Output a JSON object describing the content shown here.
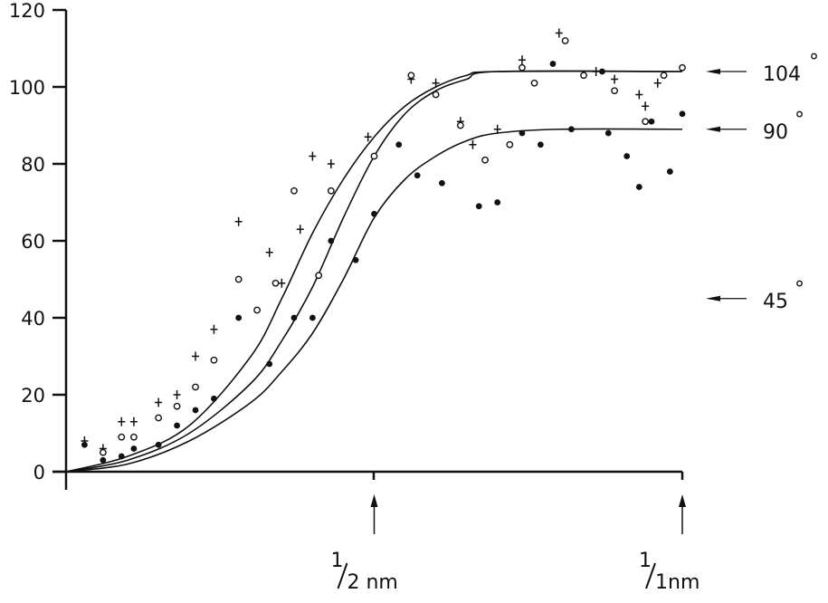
{
  "chart_data": {
    "type": "scatter",
    "title": "",
    "xlabel": "",
    "ylabel": "",
    "ylim": [
      0,
      120
    ],
    "xlim": [
      0,
      1.0
    ],
    "grid": false,
    "y_ticks": [
      "0",
      "20",
      "40",
      "60",
      "80",
      "100",
      "120"
    ],
    "x_markers": [
      {
        "x": 0.5,
        "label_num": "1",
        "label_den": "2 nm"
      },
      {
        "x": 1.0,
        "label_num": "1",
        "label_den": "1nm"
      }
    ],
    "annotations": [
      {
        "label": "104",
        "unit": "°",
        "y": 104
      },
      {
        "label": "90",
        "unit": "°",
        "y": 89
      },
      {
        "label": "45",
        "unit": "°",
        "y": 45
      }
    ],
    "series": [
      {
        "name": "plus",
        "marker": "+",
        "curve": [
          [
            0,
            0
          ],
          [
            0.1,
            4
          ],
          [
            0.2,
            12
          ],
          [
            0.3,
            30
          ],
          [
            0.35,
            45
          ],
          [
            0.4,
            62
          ],
          [
            0.45,
            76
          ],
          [
            0.5,
            87
          ],
          [
            0.55,
            95
          ],
          [
            0.6,
            100
          ],
          [
            0.65,
            103
          ],
          [
            0.7,
            104
          ],
          [
            1.0,
            104
          ]
        ],
        "points": [
          [
            0.03,
            8
          ],
          [
            0.06,
            6
          ],
          [
            0.09,
            13
          ],
          [
            0.11,
            13
          ],
          [
            0.15,
            18
          ],
          [
            0.18,
            20
          ],
          [
            0.21,
            30
          ],
          [
            0.24,
            37
          ],
          [
            0.28,
            65
          ],
          [
            0.33,
            57
          ],
          [
            0.35,
            49
          ],
          [
            0.38,
            63
          ],
          [
            0.4,
            82
          ],
          [
            0.43,
            80
          ],
          [
            0.49,
            87
          ],
          [
            0.56,
            102
          ],
          [
            0.6,
            101
          ],
          [
            0.64,
            91
          ],
          [
            0.66,
            85
          ],
          [
            0.7,
            89
          ],
          [
            0.74,
            107
          ],
          [
            0.8,
            114
          ],
          [
            0.86,
            104
          ],
          [
            0.89,
            102
          ],
          [
            0.93,
            98
          ],
          [
            0.96,
            101
          ],
          [
            0.94,
            95
          ]
        ]
      },
      {
        "name": "open circle",
        "marker": "o",
        "curve": [
          [
            0,
            0
          ],
          [
            0.1,
            3
          ],
          [
            0.2,
            10
          ],
          [
            0.3,
            23
          ],
          [
            0.35,
            34
          ],
          [
            0.4,
            48
          ],
          [
            0.45,
            66
          ],
          [
            0.5,
            82
          ],
          [
            0.55,
            93
          ],
          [
            0.6,
            99
          ],
          [
            0.65,
            102
          ],
          [
            0.7,
            104
          ],
          [
            1.0,
            104
          ]
        ],
        "points": [
          [
            0.06,
            5
          ],
          [
            0.09,
            9
          ],
          [
            0.11,
            9
          ],
          [
            0.15,
            14
          ],
          [
            0.18,
            17
          ],
          [
            0.21,
            22
          ],
          [
            0.24,
            29
          ],
          [
            0.28,
            50
          ],
          [
            0.31,
            42
          ],
          [
            0.34,
            49
          ],
          [
            0.37,
            73
          ],
          [
            0.41,
            51
          ],
          [
            0.43,
            73
          ],
          [
            0.5,
            82
          ],
          [
            0.56,
            103
          ],
          [
            0.6,
            98
          ],
          [
            0.64,
            90
          ],
          [
            0.68,
            81
          ],
          [
            0.72,
            85
          ],
          [
            0.74,
            105
          ],
          [
            0.81,
            112
          ],
          [
            0.76,
            101
          ],
          [
            0.84,
            103
          ],
          [
            0.89,
            99
          ],
          [
            0.94,
            91
          ],
          [
            0.97,
            103
          ],
          [
            1.0,
            105
          ]
        ]
      },
      {
        "name": "filled circle",
        "marker": "•",
        "curve": [
          [
            0,
            0
          ],
          [
            0.1,
            2
          ],
          [
            0.2,
            8
          ],
          [
            0.3,
            18
          ],
          [
            0.35,
            26
          ],
          [
            0.4,
            36
          ],
          [
            0.45,
            50
          ],
          [
            0.5,
            66
          ],
          [
            0.55,
            76
          ],
          [
            0.6,
            82
          ],
          [
            0.65,
            86
          ],
          [
            0.7,
            88
          ],
          [
            0.8,
            89
          ],
          [
            1.0,
            89
          ]
        ],
        "points": [
          [
            0.03,
            7
          ],
          [
            0.06,
            3
          ],
          [
            0.09,
            4
          ],
          [
            0.11,
            6
          ],
          [
            0.15,
            7
          ],
          [
            0.18,
            12
          ],
          [
            0.21,
            16
          ],
          [
            0.24,
            19
          ],
          [
            0.28,
            40
          ],
          [
            0.33,
            28
          ],
          [
            0.37,
            40
          ],
          [
            0.4,
            40
          ],
          [
            0.43,
            60
          ],
          [
            0.47,
            55
          ],
          [
            0.5,
            67
          ],
          [
            0.54,
            85
          ],
          [
            0.57,
            77
          ],
          [
            0.61,
            75
          ],
          [
            0.67,
            69
          ],
          [
            0.7,
            70
          ],
          [
            0.74,
            88
          ],
          [
            0.77,
            85
          ],
          [
            0.79,
            106
          ],
          [
            0.82,
            89
          ],
          [
            0.87,
            104
          ],
          [
            0.88,
            88
          ],
          [
            0.91,
            82
          ],
          [
            0.93,
            74
          ],
          [
            0.95,
            91
          ],
          [
            0.98,
            78
          ],
          [
            1.0,
            93
          ]
        ]
      }
    ]
  }
}
